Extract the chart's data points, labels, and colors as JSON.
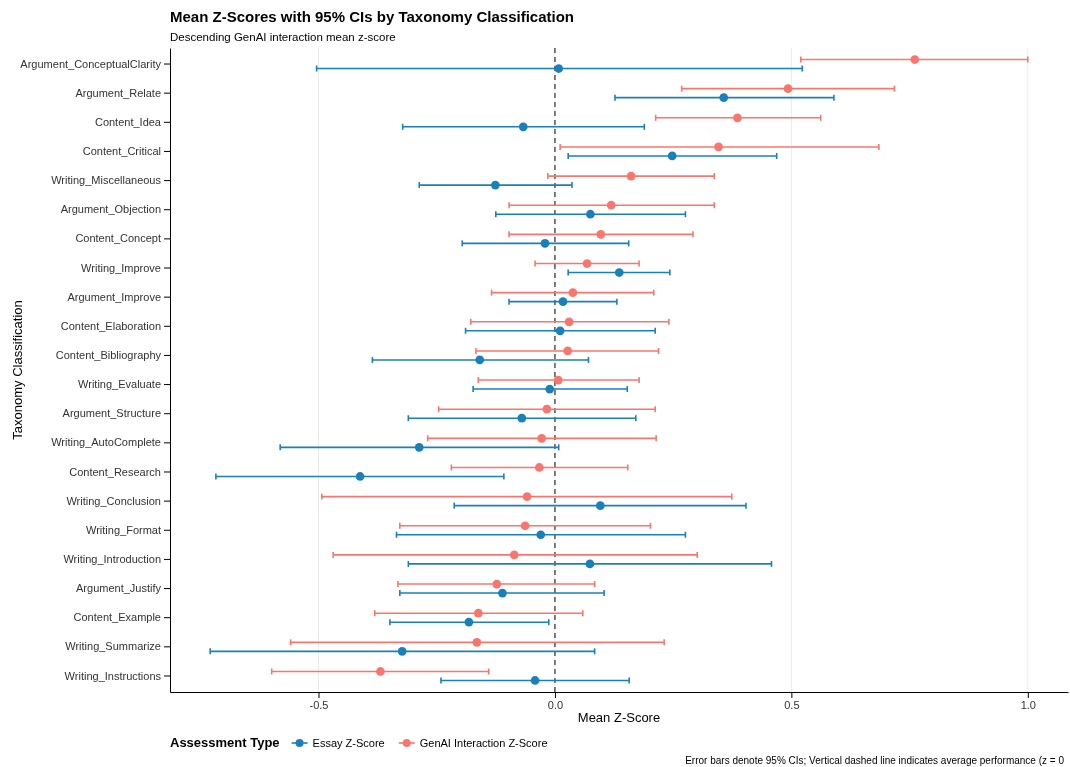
{
  "chart_data": {
    "type": "scatter",
    "orientation": "horizontal",
    "title": "Mean Z-Scores with 95% CIs by Taxonomy Classification",
    "subtitle": "Descending GenAI interaction mean z-score",
    "xlabel": "Mean Z-Score",
    "ylabel": "Taxonomy Classification",
    "legend_title": "Assessment Type",
    "legend": "bottom left",
    "grid": "x",
    "marker": "circle",
    "categories": [
      "Argument_ConceptualClarity",
      "Argument_Relate",
      "Content_Idea",
      "Content_Critical",
      "Writing_Miscellaneous",
      "Argument_Objection",
      "Content_Concept",
      "Writing_Improve",
      "Argument_Improve",
      "Content_Elaboration",
      "Content_Bibliography",
      "Writing_Evaluate",
      "Argument_Structure",
      "Writing_AutoComplete",
      "Content_Research",
      "Writing_Conclusion",
      "Writing_Format",
      "Writing_Introduction",
      "Argument_Justify",
      "Content_Example",
      "Writing_Summarize",
      "Writing_Instructions"
    ],
    "xlim": [
      -0.814,
      1.085
    ],
    "xticks": [
      -0.5,
      {
        "value": 0,
        "label": "0.0"
      },
      0.5,
      {
        "value": 1,
        "label": "1.0"
      }
    ],
    "series": [
      {
        "name": "Essay Z-Score",
        "color": "#1a80bb",
        "values": [
          0.008,
          0.357,
          -0.067,
          0.248,
          -0.126,
          0.075,
          -0.021,
          0.136,
          0.017,
          0.011,
          -0.159,
          -0.011,
          -0.07,
          -0.287,
          -0.412,
          0.096,
          -0.03,
          0.074,
          -0.111,
          -0.182,
          -0.323,
          -0.042
        ],
        "errors": [
          [
            -0.504,
            0.523
          ],
          [
            0.127,
            0.59
          ],
          [
            -0.322,
            0.189
          ],
          [
            0.028,
            0.469
          ],
          [
            -0.287,
            0.036
          ],
          [
            -0.125,
            0.276
          ],
          [
            -0.196,
            0.156
          ],
          [
            0.028,
            0.243
          ],
          [
            -0.097,
            0.131
          ],
          [
            -0.189,
            0.212
          ],
          [
            -0.386,
            0.071
          ],
          [
            -0.173,
            0.153
          ],
          [
            -0.31,
            0.171
          ],
          [
            -0.581,
            0.008
          ],
          [
            -0.717,
            -0.108
          ],
          [
            -0.213,
            0.404
          ],
          [
            -0.335,
            0.276
          ],
          [
            -0.31,
            0.458
          ],
          [
            -0.328,
            0.104
          ],
          [
            -0.349,
            -0.013
          ],
          [
            -0.729,
            0.084
          ],
          [
            -0.241,
            0.157
          ]
        ]
      },
      {
        "name": "GenAI Interaction Z-Score",
        "color": "#f8766d",
        "values": [
          0.761,
          0.493,
          0.386,
          0.346,
          0.161,
          0.119,
          0.097,
          0.068,
          0.038,
          0.03,
          0.027,
          0.007,
          -0.017,
          -0.028,
          -0.033,
          -0.059,
          -0.063,
          -0.086,
          -0.123,
          -0.162,
          -0.165,
          -0.369
        ],
        "errors": [
          [
            0.52,
            1.0
          ],
          [
            0.268,
            0.718
          ],
          [
            0.213,
            0.562
          ],
          [
            0.011,
            0.685
          ],
          [
            -0.015,
            0.337
          ],
          [
            -0.097,
            0.337
          ],
          [
            -0.097,
            0.292
          ],
          [
            -0.042,
            0.178
          ],
          [
            -0.134,
            0.209
          ],
          [
            -0.178,
            0.241
          ],
          [
            -0.167,
            0.219
          ],
          [
            -0.162,
            0.178
          ],
          [
            -0.246,
            0.212
          ],
          [
            -0.269,
            0.214
          ],
          [
            -0.219,
            0.154
          ],
          [
            -0.493,
            0.374
          ],
          [
            -0.328,
            0.202
          ],
          [
            -0.469,
            0.301
          ],
          [
            -0.332,
            0.084
          ],
          [
            -0.381,
            0.059
          ],
          [
            -0.559,
            0.231
          ],
          [
            -0.599,
            -0.14
          ]
        ]
      }
    ],
    "ref_lines": [
      {
        "axis": "x",
        "value": 0,
        "line_style": "dashed",
        "color": "#555555"
      }
    ],
    "annotations": [
      "Error bars denote 95% CIs; Vertical dashed line indicates average performance (z = 0"
    ]
  }
}
